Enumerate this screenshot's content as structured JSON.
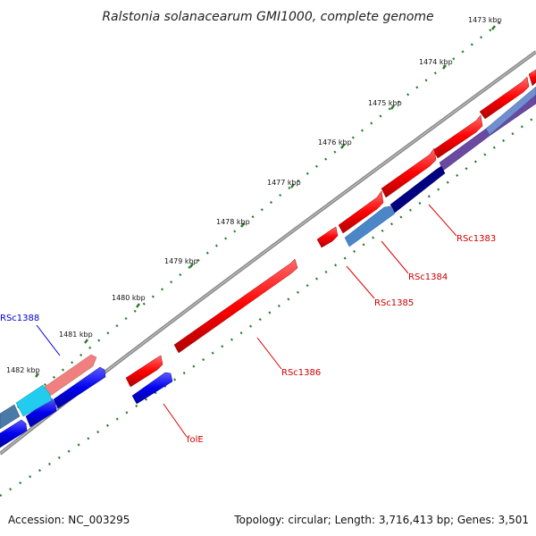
{
  "title": "Ralstonia solanacearum GMI1000, complete genome",
  "footer": {
    "accession": "Accession: NC_003295",
    "summary": "Topology: circular; Length: 3,716,413 bp; Genes: 3,501"
  },
  "ticks": [
    "1473 kbp",
    "1474 kbp",
    "1475 kbp",
    "1476 kbp",
    "1477 kbp",
    "1478 kbp",
    "1479 kbp",
    "1480 kbp",
    "1481 kbp",
    "1482 kbp"
  ],
  "gene_labels": [
    {
      "name": "RSc1383",
      "color": "#cc0000"
    },
    {
      "name": "RSc1384",
      "color": "#cc0000"
    },
    {
      "name": "RSc1385",
      "color": "#cc0000"
    },
    {
      "name": "RSc1386",
      "color": "#cc0000"
    },
    {
      "name": "RSc1388",
      "color": "#0000cc"
    },
    {
      "name": "folE",
      "color": "#cc0000"
    }
  ],
  "colors": {
    "forward_cds": "#ff0000",
    "reverse_cds": "#0000ee",
    "backbone": "#888888",
    "tick_marks": "#2a7a2a"
  }
}
